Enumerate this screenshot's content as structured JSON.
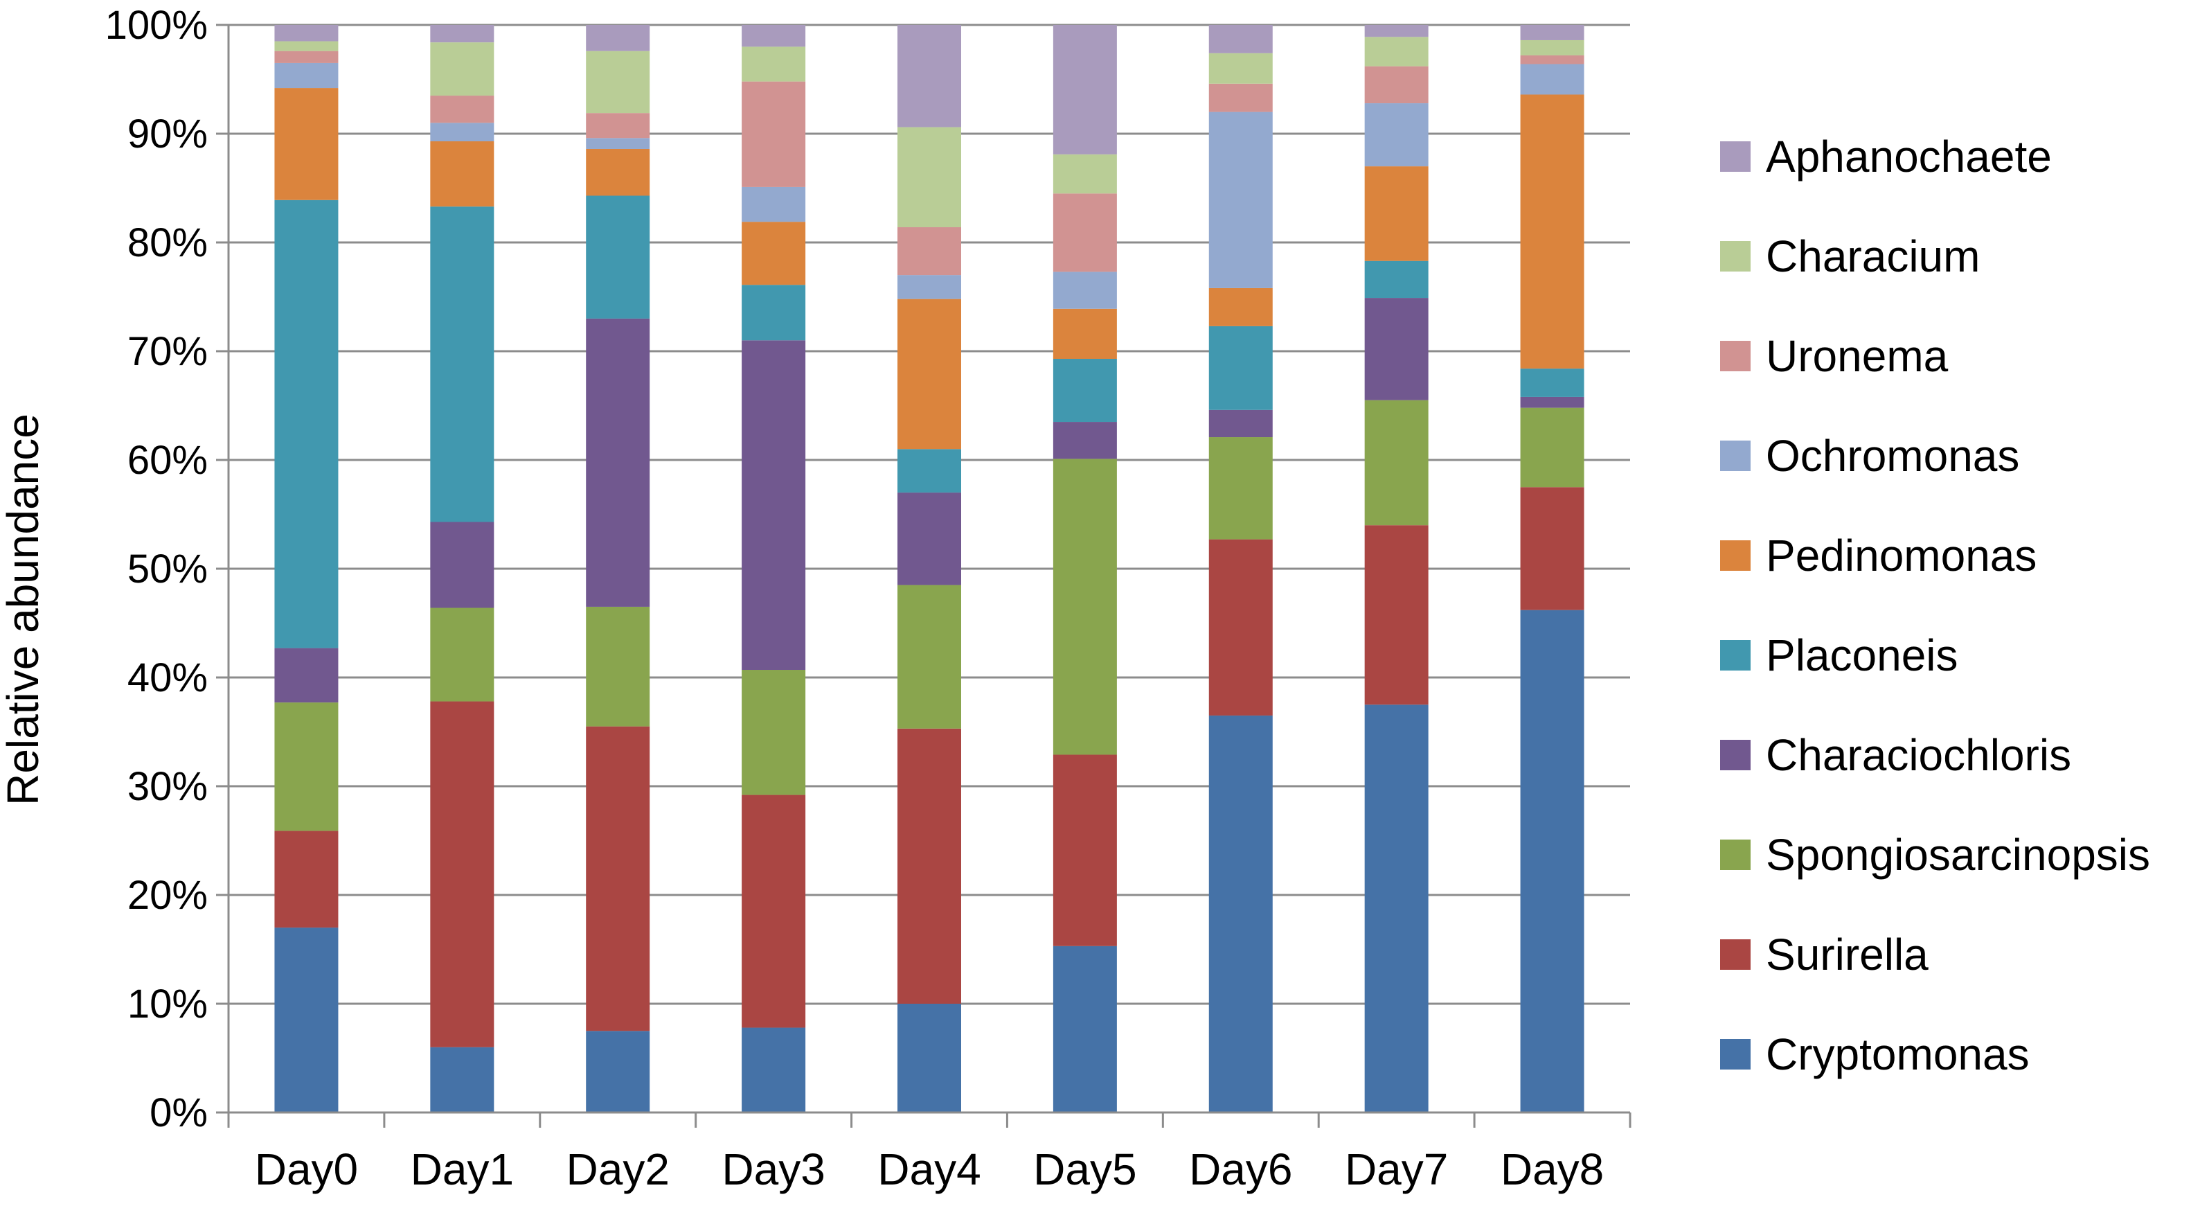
{
  "chart_data": {
    "type": "bar",
    "stacked": true,
    "percent": true,
    "categories": [
      "Day0",
      "Day1",
      "Day2",
      "Day3",
      "Day4",
      "Day5",
      "Day6",
      "Day7",
      "Day8"
    ],
    "ylabel": "Relative abundance",
    "xlabel": "",
    "ylim": [
      0,
      100
    ],
    "yticks": [
      "0%",
      "10%",
      "20%",
      "30%",
      "40%",
      "50%",
      "60%",
      "70%",
      "80%",
      "90%",
      "100%"
    ],
    "grid": true,
    "legend_position": "right",
    "series": [
      {
        "name": "Cryptomonas",
        "color": "#4572A7",
        "values": [
          17,
          6,
          7.5,
          7.8,
          10,
          15.3,
          36.5,
          37.5,
          46.2
        ]
      },
      {
        "name": "Surirella",
        "color": "#AA4643",
        "values": [
          8.9,
          31.8,
          28,
          21.4,
          25.3,
          17.6,
          16.2,
          16.5,
          11.3
        ]
      },
      {
        "name": "Spongiosarcinopsis",
        "color": "#89A54E",
        "values": [
          11.8,
          8.6,
          11,
          11.5,
          13.2,
          27.2,
          9.4,
          11.5,
          7.3
        ]
      },
      {
        "name": "Characiochloris",
        "color": "#71588F",
        "values": [
          5,
          7.9,
          26.5,
          30.3,
          8.5,
          3.4,
          2.5,
          9.4,
          1
        ]
      },
      {
        "name": "Placoneis",
        "color": "#4198AF",
        "values": [
          41.2,
          29,
          11.3,
          5.1,
          4,
          5.8,
          7.7,
          3.4,
          2.6
        ]
      },
      {
        "name": "Pedinomonas",
        "color": "#DB843D",
        "values": [
          10.3,
          6,
          4.3,
          5.8,
          13.8,
          4.6,
          3.5,
          8.7,
          25.2
        ]
      },
      {
        "name": "Ochromonas",
        "color": "#93A9CF",
        "values": [
          2.3,
          1.7,
          1,
          3.2,
          2.2,
          3.4,
          16.2,
          5.8,
          2.8
        ]
      },
      {
        "name": "Uronema",
        "color": "#D19392",
        "values": [
          1.1,
          2.5,
          2.3,
          9.7,
          4.4,
          7.2,
          2.6,
          3.4,
          0.8
        ]
      },
      {
        "name": "Characium",
        "color": "#B9CD96",
        "values": [
          0.9,
          4.9,
          5.7,
          3.2,
          9.2,
          3.6,
          2.8,
          2.7,
          1.4
        ]
      },
      {
        "name": "Aphanochaete",
        "color": "#A99BBD",
        "values": [
          1.5,
          1.6,
          2.4,
          2,
          9.4,
          11.9,
          2.6,
          1.1,
          1.4
        ]
      }
    ]
  }
}
